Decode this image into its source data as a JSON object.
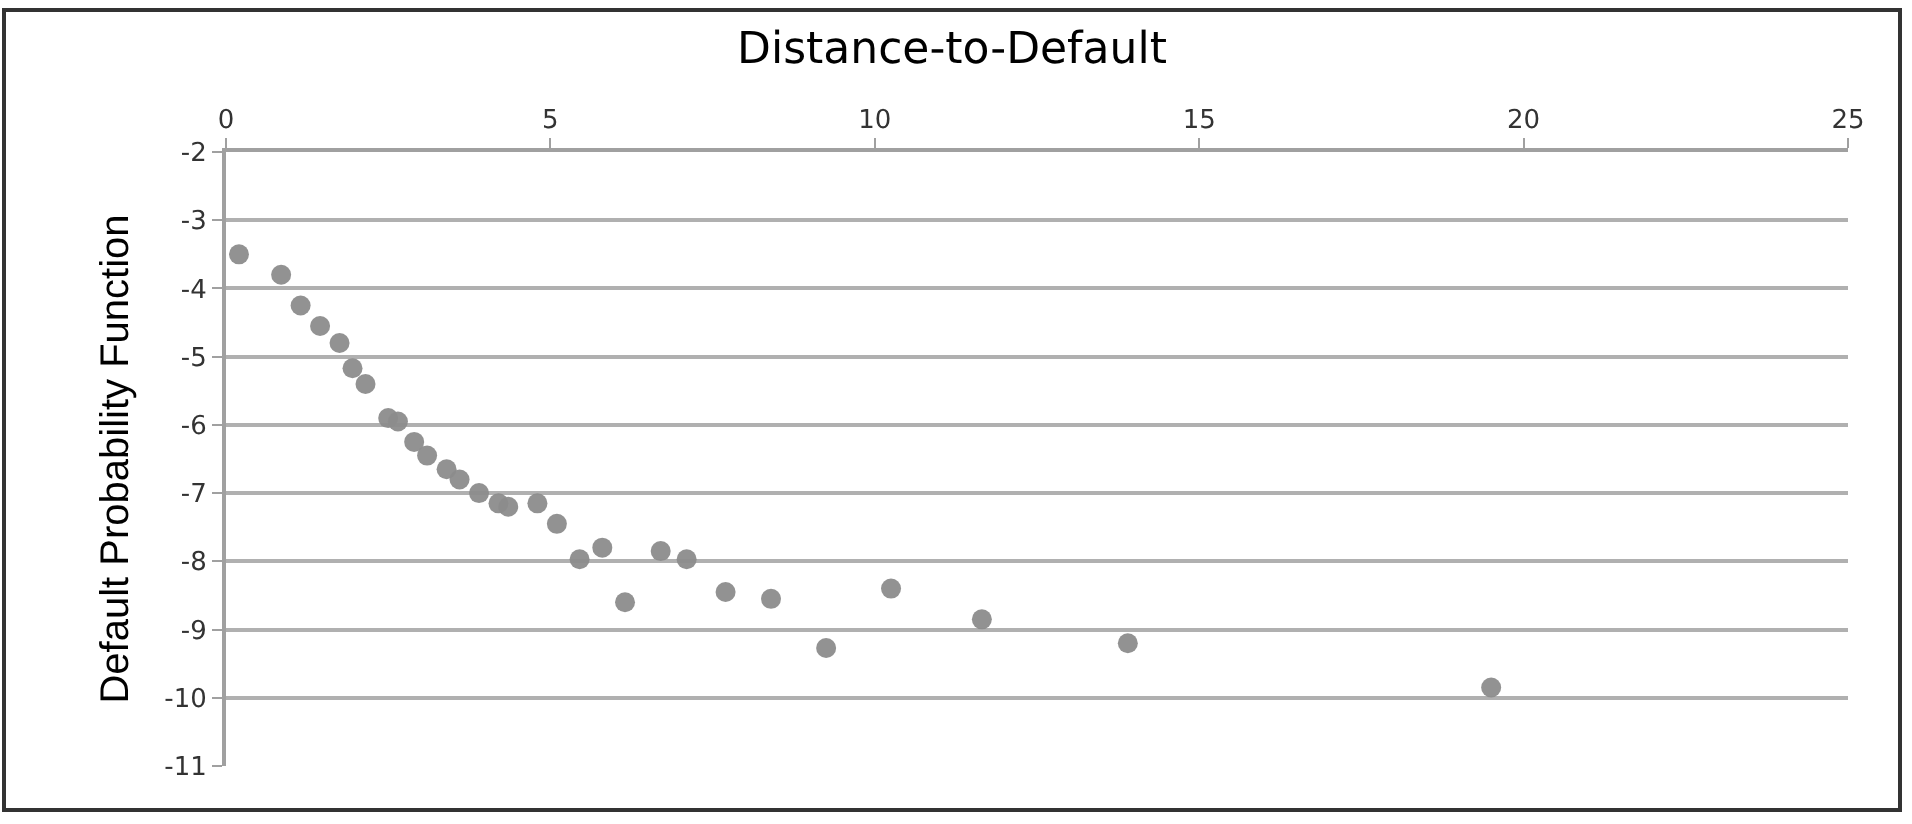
{
  "chart_data": {
    "type": "scatter",
    "title": "Distance-to-Default",
    "ylabel": "Default Probability Function",
    "x": [
      0.2,
      0.85,
      1.15,
      1.45,
      1.75,
      1.95,
      2.15,
      2.5,
      2.65,
      2.9,
      3.1,
      3.4,
      3.6,
      3.9,
      4.2,
      4.35,
      4.8,
      5.1,
      5.45,
      5.8,
      6.15,
      6.7,
      7.1,
      7.7,
      8.4,
      9.25,
      10.25,
      11.65,
      13.9,
      19.5
    ],
    "series": [
      {
        "color": "#8c8c8c",
        "values": [
          -3.5,
          -3.8,
          -4.25,
          -4.55,
          -4.8,
          -5.17,
          -5.4,
          -5.9,
          -5.95,
          -6.25,
          -6.45,
          -6.65,
          -6.8,
          -7.0,
          -7.15,
          -7.2,
          -7.15,
          -7.45,
          -7.97,
          -7.8,
          -8.6,
          -7.85,
          -7.97,
          -8.45,
          -8.55,
          -9.27,
          -8.4,
          -8.85,
          -9.2,
          -9.85
        ]
      }
    ],
    "xlim": [
      0,
      25
    ],
    "xticks": [
      0,
      5,
      10,
      15,
      20,
      25
    ],
    "ylim": [
      -11,
      -2
    ],
    "yticks": [
      -11,
      -10,
      -9,
      -8,
      -7,
      -6,
      -5,
      -4,
      -3,
      -2
    ],
    "grid": "y",
    "legend": false,
    "marker": "circle"
  }
}
